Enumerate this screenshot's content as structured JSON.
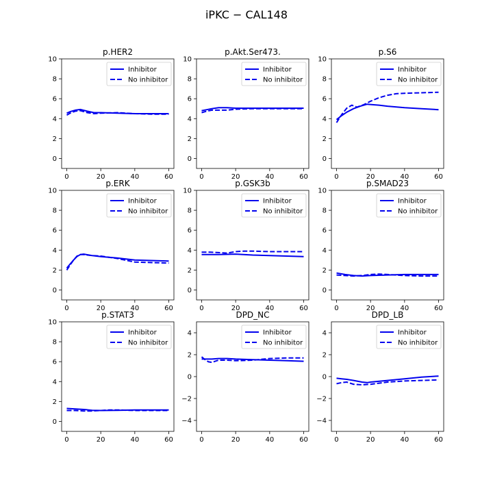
{
  "figure_title": "iPKC − CAL148",
  "colors": {
    "series": "#0000ee",
    "axes": "#000000",
    "legend_border": "#cccccc"
  },
  "chart_data": [
    {
      "type": "line",
      "title": "p.HER2",
      "legend": "top-right",
      "xlim": [
        -3,
        63
      ],
      "ylim": [
        -1,
        10
      ],
      "xticks": [
        0,
        20,
        40,
        60
      ],
      "yticks": [
        0,
        2,
        4,
        6,
        8,
        10
      ],
      "series": [
        {
          "name": "Inhibitor",
          "style": "solid",
          "x": [
            0,
            2,
            5,
            8,
            12,
            16,
            20,
            30,
            40,
            50,
            60
          ],
          "y": [
            4.55,
            4.7,
            4.85,
            4.92,
            4.75,
            4.6,
            4.6,
            4.55,
            4.5,
            4.5,
            4.5
          ]
        },
        {
          "name": "No inhibitor",
          "style": "dashed",
          "x": [
            0,
            2,
            5,
            8,
            12,
            16,
            20,
            30,
            40,
            50,
            60
          ],
          "y": [
            4.35,
            4.55,
            4.75,
            4.8,
            4.6,
            4.5,
            4.55,
            4.6,
            4.5,
            4.45,
            4.45
          ]
        }
      ]
    },
    {
      "type": "line",
      "title": "p.Akt.Ser473.",
      "legend": "top-right",
      "xlim": [
        -3,
        63
      ],
      "ylim": [
        -1,
        10
      ],
      "xticks": [
        0,
        20,
        40,
        60
      ],
      "yticks": [
        0,
        2,
        4,
        6,
        8,
        10
      ],
      "series": [
        {
          "name": "Inhibitor",
          "style": "solid",
          "x": [
            0,
            3,
            6,
            10,
            15,
            20,
            30,
            40,
            50,
            60
          ],
          "y": [
            4.8,
            4.9,
            5.0,
            5.1,
            5.1,
            5.05,
            5.05,
            5.05,
            5.05,
            5.05
          ]
        },
        {
          "name": "No inhibitor",
          "style": "dashed",
          "x": [
            0,
            3,
            6,
            10,
            15,
            20,
            30,
            40,
            50,
            60
          ],
          "y": [
            4.6,
            4.75,
            4.85,
            4.85,
            4.85,
            4.95,
            5.0,
            5.0,
            5.0,
            5.0
          ]
        }
      ]
    },
    {
      "type": "line",
      "title": "p.S6",
      "legend": "top-right",
      "xlim": [
        -3,
        63
      ],
      "ylim": [
        -1,
        10
      ],
      "xticks": [
        0,
        20,
        40,
        60
      ],
      "yticks": [
        0,
        2,
        4,
        6,
        8,
        10
      ],
      "series": [
        {
          "name": "Inhibitor",
          "style": "solid",
          "x": [
            0,
            3,
            6,
            10,
            14,
            18,
            25,
            30,
            40,
            50,
            60
          ],
          "y": [
            3.9,
            4.3,
            4.65,
            5.0,
            5.25,
            5.45,
            5.35,
            5.25,
            5.1,
            5.0,
            4.9
          ]
        },
        {
          "name": "No inhibitor",
          "style": "dashed",
          "x": [
            0,
            3,
            6,
            9,
            12,
            16,
            20,
            25,
            30,
            35,
            40,
            50,
            60
          ],
          "y": [
            3.6,
            4.4,
            5.05,
            5.35,
            5.15,
            5.4,
            5.75,
            6.1,
            6.35,
            6.5,
            6.55,
            6.6,
            6.65
          ]
        }
      ]
    },
    {
      "type": "line",
      "title": "p.ERK",
      "legend": "top-right",
      "xlim": [
        -3,
        63
      ],
      "ylim": [
        -1,
        10
      ],
      "xticks": [
        0,
        20,
        40,
        60
      ],
      "yticks": [
        0,
        2,
        4,
        6,
        8,
        10
      ],
      "series": [
        {
          "name": "Inhibitor",
          "style": "solid",
          "x": [
            0,
            2,
            4,
            6,
            8,
            10,
            15,
            20,
            30,
            40,
            50,
            60
          ],
          "y": [
            2.2,
            2.6,
            3.0,
            3.35,
            3.55,
            3.6,
            3.45,
            3.35,
            3.2,
            3.0,
            2.95,
            2.9
          ]
        },
        {
          "name": "No inhibitor",
          "style": "dashed",
          "x": [
            0,
            2,
            4,
            6,
            8,
            10,
            15,
            20,
            30,
            40,
            50,
            60
          ],
          "y": [
            2.0,
            2.5,
            3.0,
            3.4,
            3.55,
            3.55,
            3.45,
            3.4,
            3.15,
            2.8,
            2.75,
            2.7
          ]
        }
      ]
    },
    {
      "type": "line",
      "title": "p.GSK3b",
      "legend": "top-right",
      "xlim": [
        -3,
        63
      ],
      "ylim": [
        -1,
        10
      ],
      "xticks": [
        0,
        20,
        40,
        60
      ],
      "yticks": [
        0,
        2,
        4,
        6,
        8,
        10
      ],
      "series": [
        {
          "name": "Inhibitor",
          "style": "solid",
          "x": [
            0,
            5,
            10,
            20,
            30,
            40,
            50,
            60
          ],
          "y": [
            3.55,
            3.55,
            3.55,
            3.6,
            3.5,
            3.45,
            3.4,
            3.35
          ]
        },
        {
          "name": "No inhibitor",
          "style": "dashed",
          "x": [
            0,
            5,
            10,
            15,
            20,
            25,
            30,
            40,
            50,
            60
          ],
          "y": [
            3.8,
            3.8,
            3.75,
            3.7,
            3.85,
            3.9,
            3.9,
            3.85,
            3.85,
            3.85
          ]
        }
      ]
    },
    {
      "type": "line",
      "title": "p.SMAD23",
      "legend": "top-right",
      "xlim": [
        -3,
        63
      ],
      "ylim": [
        -1,
        10
      ],
      "xticks": [
        0,
        20,
        40,
        60
      ],
      "yticks": [
        0,
        2,
        4,
        6,
        8,
        10
      ],
      "series": [
        {
          "name": "Inhibitor",
          "style": "solid",
          "x": [
            0,
            5,
            10,
            15,
            20,
            30,
            40,
            50,
            60
          ],
          "y": [
            1.7,
            1.55,
            1.45,
            1.4,
            1.45,
            1.5,
            1.55,
            1.55,
            1.55
          ]
        },
        {
          "name": "No inhibitor",
          "style": "dashed",
          "x": [
            0,
            5,
            10,
            15,
            20,
            25,
            30,
            40,
            50,
            60
          ],
          "y": [
            1.5,
            1.45,
            1.4,
            1.45,
            1.55,
            1.6,
            1.55,
            1.45,
            1.4,
            1.4
          ]
        }
      ]
    },
    {
      "type": "line",
      "title": "p.STAT3",
      "legend": "top-right",
      "xlim": [
        -3,
        63
      ],
      "ylim": [
        -1,
        10
      ],
      "xticks": [
        0,
        20,
        40,
        60
      ],
      "yticks": [
        0,
        2,
        4,
        6,
        8,
        10
      ],
      "series": [
        {
          "name": "Inhibitor",
          "style": "solid",
          "x": [
            0,
            5,
            10,
            15,
            20,
            30,
            40,
            50,
            60
          ],
          "y": [
            1.3,
            1.25,
            1.2,
            1.12,
            1.1,
            1.12,
            1.15,
            1.15,
            1.15
          ]
        },
        {
          "name": "No inhibitor",
          "style": "dashed",
          "x": [
            0,
            5,
            10,
            15,
            20,
            25,
            30,
            40,
            50,
            60
          ],
          "y": [
            1.1,
            1.1,
            1.05,
            1.05,
            1.1,
            1.15,
            1.15,
            1.1,
            1.1,
            1.1
          ]
        }
      ]
    },
    {
      "type": "line",
      "title": "DPD_NC",
      "legend": "top-right",
      "xlim": [
        -3,
        63
      ],
      "ylim": [
        -5,
        5
      ],
      "xticks": [
        0,
        20,
        40,
        60
      ],
      "yticks": [
        -4,
        -2,
        0,
        2,
        4
      ],
      "series": [
        {
          "name": "Inhibitor",
          "style": "solid",
          "x": [
            0,
            3,
            6,
            10,
            15,
            20,
            30,
            40,
            50,
            60
          ],
          "y": [
            1.6,
            1.6,
            1.6,
            1.65,
            1.65,
            1.6,
            1.55,
            1.5,
            1.45,
            1.4
          ]
        },
        {
          "name": "No inhibitor",
          "style": "dashed",
          "x": [
            0,
            2,
            4,
            6,
            8,
            10,
            15,
            20,
            30,
            40,
            50,
            60
          ],
          "y": [
            1.8,
            1.55,
            1.35,
            1.3,
            1.4,
            1.5,
            1.5,
            1.45,
            1.5,
            1.65,
            1.7,
            1.7
          ]
        }
      ]
    },
    {
      "type": "line",
      "title": "DPD_LB",
      "legend": "top-right",
      "xlim": [
        -3,
        63
      ],
      "ylim": [
        -5,
        5
      ],
      "xticks": [
        0,
        20,
        40,
        60
      ],
      "yticks": [
        -4,
        -2,
        0,
        2,
        4
      ],
      "series": [
        {
          "name": "Inhibitor",
          "style": "solid",
          "x": [
            0,
            3,
            6,
            10,
            15,
            18,
            20,
            30,
            40,
            50,
            60
          ],
          "y": [
            -0.15,
            -0.2,
            -0.25,
            -0.35,
            -0.5,
            -0.55,
            -0.5,
            -0.35,
            -0.2,
            -0.05,
            0.05
          ]
        },
        {
          "name": "No inhibitor",
          "style": "dashed",
          "x": [
            0,
            3,
            6,
            10,
            15,
            20,
            30,
            40,
            50,
            60
          ],
          "y": [
            -0.65,
            -0.55,
            -0.5,
            -0.7,
            -0.75,
            -0.7,
            -0.5,
            -0.4,
            -0.35,
            -0.3
          ]
        }
      ]
    }
  ]
}
